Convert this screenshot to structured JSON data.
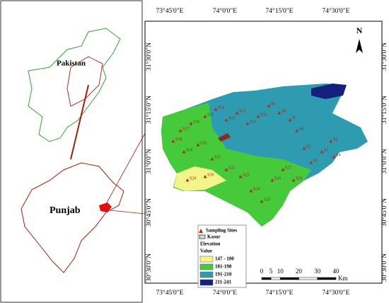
{
  "map": {
    "inset_labels": {
      "country": "Pakistan",
      "province": "Punjab"
    },
    "north": "N",
    "lon_labels": [
      "73°45'0\"E",
      "74°0'0\"E",
      "74°15'0\"E",
      "74°30'0\"E"
    ],
    "lat_labels": [
      "31°30'0\"N",
      "31°15'0\"N",
      "31°0'0\"N",
      "30°45'0\"N",
      "30°30'0\"N"
    ],
    "legend": {
      "sites": "Sampling Sites",
      "district": "Kasur",
      "elevation": "Elevation",
      "value": "Value",
      "classes": [
        {
          "label": "147 - 180",
          "color": "#f3f58a"
        },
        {
          "label": "181-190",
          "color": "#46c93a"
        },
        {
          "label": "191-210",
          "color": "#2f9bb0"
        },
        {
          "label": "211-241",
          "color": "#14207e"
        }
      ]
    },
    "scale": {
      "ticks": [
        0,
        5,
        10,
        20,
        30,
        40
      ],
      "unit": "Km"
    },
    "sites": [
      "S1",
      "S2",
      "S3",
      "S4",
      "S5",
      "S6",
      "S7",
      "S8",
      "S9",
      "S10",
      "S11",
      "S12",
      "S13",
      "S14",
      "S15",
      "S16",
      "S17",
      "S18",
      "S19",
      "S20",
      "S21",
      "S22",
      "S23",
      "S24",
      "S25",
      "S26",
      "S27",
      "S28",
      "S29",
      "S30"
    ]
  }
}
